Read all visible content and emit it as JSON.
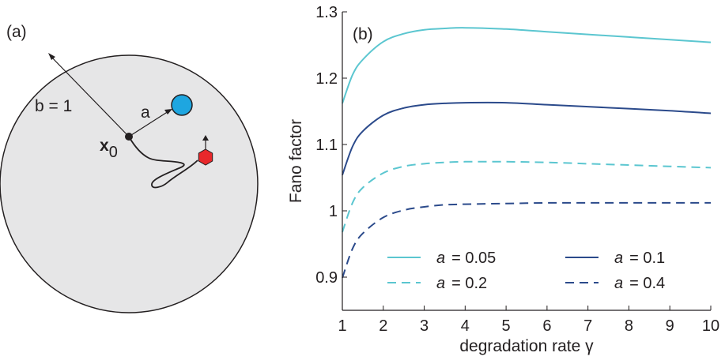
{
  "panel_a": {
    "label": "(a)",
    "radius_label": "b = 1",
    "distance_label": "a",
    "origin_label_main": "x",
    "origin_label_sub": "0",
    "colors": {
      "disk": "#e6e6e7",
      "target": "#1ea6e0",
      "particle": "#e8282b",
      "path": "#231f20"
    }
  },
  "chart_data": {
    "type": "line",
    "panel_label": "(b)",
    "xlabel": "degradation rate γ",
    "ylabel": "Fano factor",
    "xlim": [
      1,
      10
    ],
    "ylim": [
      0.85,
      1.3
    ],
    "xticks": [
      1,
      2,
      3,
      4,
      5,
      6,
      7,
      8,
      9,
      10
    ],
    "yticks": [
      0.9,
      1,
      1.1,
      1.2,
      1.3
    ],
    "ytick_labels": [
      "0.9",
      "1",
      "1.1",
      "1.2",
      "1.3"
    ],
    "grid": false,
    "legend_position": "bottom",
    "series": [
      {
        "name": "a = 0.05",
        "legend_var": "a",
        "legend_value": "= 0.05",
        "color": "#5bc6d0",
        "dashed": false,
        "x": [
          1,
          1.25,
          1.5,
          2,
          2.5,
          3,
          3.5,
          4,
          5,
          6,
          7,
          8,
          9,
          10
        ],
        "y": [
          1.162,
          1.205,
          1.228,
          1.255,
          1.267,
          1.273,
          1.275,
          1.276,
          1.274,
          1.27,
          1.266,
          1.262,
          1.258,
          1.254
        ]
      },
      {
        "name": "a = 0.1",
        "legend_var": "a",
        "legend_value": "= 0.1",
        "color": "#2b4a8b",
        "dashed": false,
        "x": [
          1,
          1.25,
          1.5,
          2,
          2.5,
          3,
          3.5,
          4,
          5,
          6,
          7,
          8,
          9,
          10
        ],
        "y": [
          1.054,
          1.097,
          1.12,
          1.144,
          1.155,
          1.16,
          1.162,
          1.163,
          1.163,
          1.16,
          1.157,
          1.154,
          1.151,
          1.147
        ]
      },
      {
        "name": "a = 0.2",
        "legend_var": "a",
        "legend_value": "= 0.2",
        "color": "#5bc6d0",
        "dashed": true,
        "x": [
          1,
          1.25,
          1.5,
          2,
          2.5,
          3,
          3.5,
          4,
          5,
          6,
          7,
          8,
          9,
          10
        ],
        "y": [
          0.968,
          1.012,
          1.035,
          1.057,
          1.067,
          1.071,
          1.073,
          1.074,
          1.074,
          1.073,
          1.071,
          1.069,
          1.067,
          1.065
        ]
      },
      {
        "name": "a = 0.4",
        "legend_var": "a",
        "legend_value": "= 0.4",
        "color": "#2b4a8b",
        "dashed": true,
        "x": [
          1,
          1.25,
          1.5,
          2,
          2.5,
          3,
          3.5,
          4,
          5,
          6,
          7,
          8,
          9,
          10
        ],
        "y": [
          0.899,
          0.943,
          0.966,
          0.99,
          1.001,
          1.006,
          1.009,
          1.01,
          1.011,
          1.012,
          1.012,
          1.012,
          1.012,
          1.012
        ]
      }
    ]
  }
}
